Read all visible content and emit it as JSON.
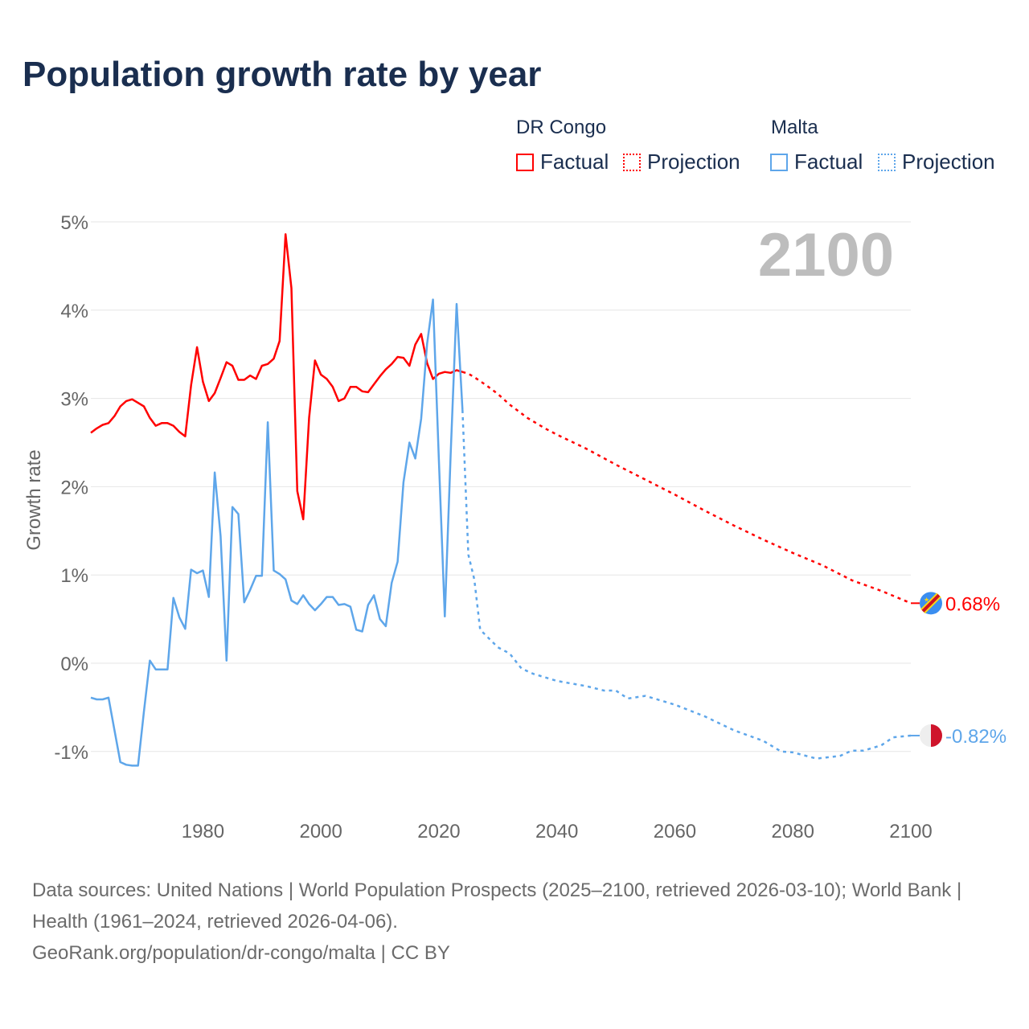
{
  "chart_data": {
    "type": "line",
    "title": "Population growth rate by year",
    "xlabel": "",
    "ylabel": "Growth rate",
    "xlim": [
      1961,
      2100
    ],
    "ylim": [
      -1.5,
      5
    ],
    "x_ticks": [
      1980,
      2000,
      2020,
      2040,
      2060,
      2080,
      2100
    ],
    "x_tick_labels": [
      "1980",
      "2000",
      "2020",
      "2040",
      "2060",
      "2080",
      "2100"
    ],
    "y_ticks": [
      -1,
      0,
      1,
      2,
      3,
      4,
      5
    ],
    "y_tick_labels": [
      "-1%",
      "0%",
      "1%",
      "2%",
      "3%",
      "4%",
      "5%"
    ],
    "grid": true,
    "year_watermark": "2100",
    "legend": {
      "placement": "top-right",
      "groups": [
        {
          "name": "DR Congo",
          "items": [
            "Factual",
            "Projection"
          ]
        },
        {
          "name": "Malta",
          "items": [
            "Factual",
            "Projection"
          ]
        }
      ]
    },
    "series": [
      {
        "name": "DR Congo",
        "color": "#ff0000",
        "end_label": "0.68%",
        "flag": "dr-congo-flag",
        "factual": {
          "x": [
            1961,
            1962,
            1963,
            1964,
            1965,
            1966,
            1967,
            1968,
            1969,
            1970,
            1971,
            1972,
            1973,
            1974,
            1975,
            1976,
            1977,
            1978,
            1979,
            1980,
            1981,
            1982,
            1983,
            1984,
            1985,
            1986,
            1987,
            1988,
            1989,
            1990,
            1991,
            1992,
            1993,
            1994,
            1995,
            1996,
            1997,
            1998,
            1999,
            2000,
            2001,
            2002,
            2003,
            2004,
            2005,
            2006,
            2007,
            2008,
            2009,
            2010,
            2011,
            2012,
            2013,
            2014,
            2015,
            2016,
            2017,
            2018,
            2019,
            2020,
            2021,
            2022,
            2023,
            2024
          ],
          "y": [
            2.61,
            2.66,
            2.7,
            2.72,
            2.8,
            2.91,
            2.97,
            2.99,
            2.95,
            2.91,
            2.78,
            2.69,
            2.72,
            2.72,
            2.69,
            2.62,
            2.57,
            3.15,
            3.58,
            3.19,
            2.97,
            3.06,
            3.23,
            3.41,
            3.37,
            3.21,
            3.21,
            3.26,
            3.22,
            3.37,
            3.39,
            3.45,
            3.65,
            4.86,
            4.25,
            1.95,
            1.63,
            2.78,
            3.43,
            3.27,
            3.22,
            3.13,
            2.97,
            3.0,
            3.13,
            3.13,
            3.08,
            3.07,
            3.16,
            3.25,
            3.33,
            3.39,
            3.47,
            3.46,
            3.37,
            3.61,
            3.73,
            3.4,
            3.22,
            3.28,
            3.3,
            3.29,
            3.32,
            3.3
          ]
        },
        "projection": {
          "x": [
            2024,
            2025,
            2026,
            2028,
            2030,
            2032,
            2035,
            2038,
            2040,
            2045,
            2050,
            2055,
            2060,
            2065,
            2070,
            2075,
            2080,
            2085,
            2090,
            2095,
            2100
          ],
          "y": [
            3.3,
            3.28,
            3.24,
            3.15,
            3.05,
            2.93,
            2.78,
            2.66,
            2.59,
            2.43,
            2.25,
            2.08,
            1.91,
            1.73,
            1.56,
            1.4,
            1.25,
            1.11,
            0.94,
            0.82,
            0.68
          ]
        }
      },
      {
        "name": "Malta",
        "color": "#5ea6ea",
        "end_label": "-0.82%",
        "flag": "malta-flag",
        "factual": {
          "x": [
            1961,
            1962,
            1963,
            1964,
            1965,
            1966,
            1967,
            1968,
            1969,
            1970,
            1971,
            1972,
            1973,
            1974,
            1975,
            1976,
            1977,
            1978,
            1979,
            1980,
            1981,
            1982,
            1983,
            1984,
            1985,
            1986,
            1987,
            1988,
            1989,
            1990,
            1991,
            1992,
            1993,
            1994,
            1995,
            1996,
            1997,
            1998,
            1999,
            2000,
            2001,
            2002,
            2003,
            2004,
            2005,
            2006,
            2007,
            2008,
            2009,
            2010,
            2011,
            2012,
            2013,
            2014,
            2015,
            2016,
            2017,
            2018,
            2019,
            2020,
            2021,
            2022,
            2023,
            2024
          ],
          "y": [
            -0.39,
            -0.41,
            -0.41,
            -0.39,
            -0.76,
            -1.12,
            -1.15,
            -1.16,
            -1.16,
            -0.55,
            0.03,
            -0.07,
            -0.07,
            -0.07,
            0.74,
            0.52,
            0.39,
            1.06,
            1.02,
            1.05,
            0.75,
            2.16,
            1.44,
            0.03,
            1.77,
            1.69,
            0.69,
            0.83,
            0.99,
            0.99,
            2.73,
            1.05,
            1.01,
            0.95,
            0.71,
            0.67,
            0.77,
            0.67,
            0.6,
            0.67,
            0.75,
            0.75,
            0.66,
            0.67,
            0.64,
            0.38,
            0.36,
            0.66,
            0.77,
            0.5,
            0.42,
            0.91,
            1.15,
            2.05,
            2.5,
            2.32,
            2.77,
            3.62,
            4.12,
            2.31,
            0.53,
            2.37,
            4.07,
            2.87
          ]
        },
        "projection": {
          "x": [
            2024,
            2025,
            2026,
            2027,
            2030,
            2032,
            2034,
            2036,
            2040,
            2045,
            2048,
            2050,
            2052,
            2055,
            2058,
            2060,
            2065,
            2070,
            2075,
            2078,
            2080,
            2084,
            2088,
            2090,
            2092,
            2095,
            2097,
            2100
          ],
          "y": [
            2.87,
            1.23,
            0.95,
            0.38,
            0.18,
            0.11,
            -0.06,
            -0.12,
            -0.2,
            -0.26,
            -0.31,
            -0.31,
            -0.4,
            -0.37,
            -0.43,
            -0.47,
            -0.6,
            -0.76,
            -0.88,
            -1.0,
            -1.01,
            -1.08,
            -1.05,
            -0.99,
            -0.99,
            -0.93,
            -0.84,
            -0.82
          ]
        }
      }
    ]
  },
  "footer": {
    "sources": "Data sources: United Nations | World Population Prospects (2025–2100, retrieved 2026-03-10); World Bank | Health (1961–2024, retrieved 2026-04-06).",
    "credit": "GeoRank.org/population/dr-congo/malta | CC BY"
  }
}
